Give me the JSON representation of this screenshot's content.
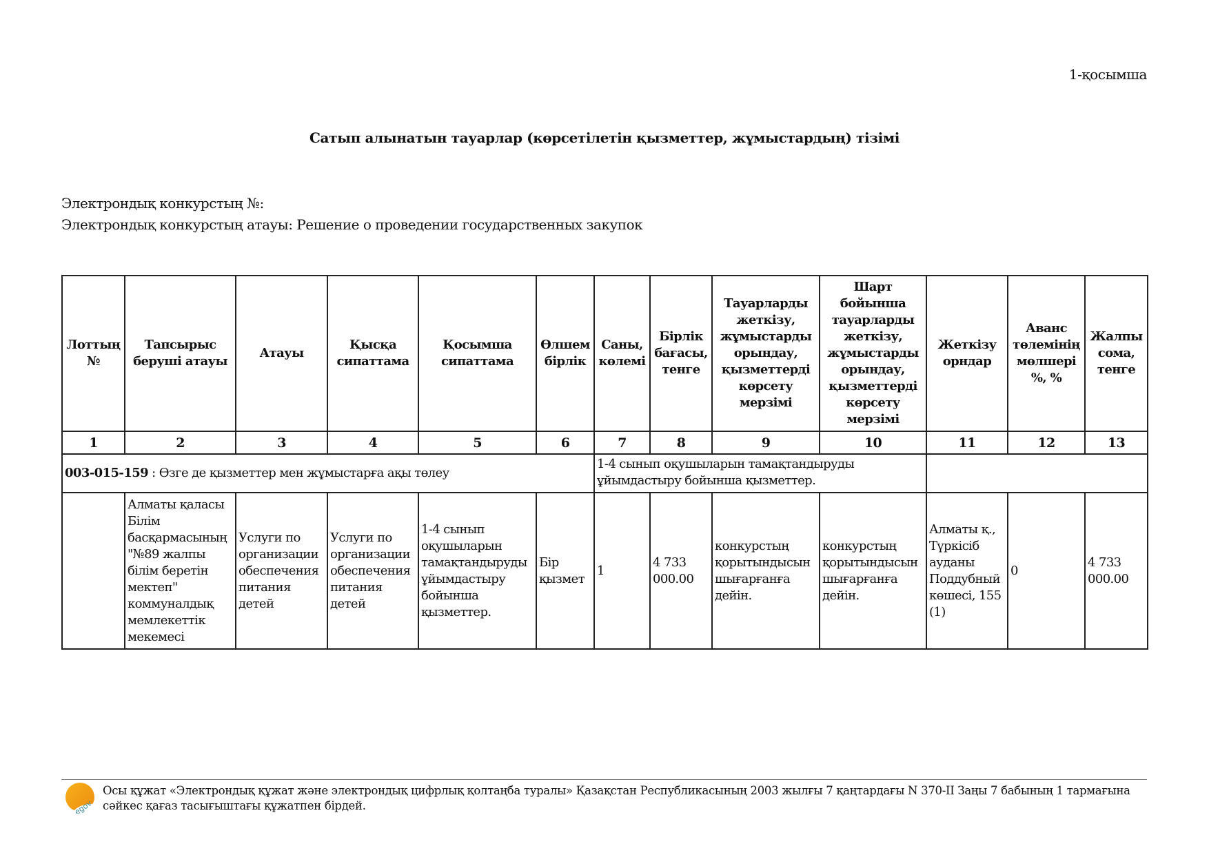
{
  "annex_label": "1-қосымша",
  "title": "Сатып алынатын тауарлар (көрсетілетін қызметтер, жұмыстардың) тізімі",
  "contest_number_label": "Электрондық конкурстың №:",
  "contest_name_label": "Электрондық конкурстың атауы: Решение о проведении государственных закупок",
  "table": {
    "headers": [
      "Лоттың №",
      "Тапсырыс беруші атауы",
      "Атауы",
      "Қысқа сипаттама",
      "Қосымша сипаттама",
      "Өлшем бірлік",
      "Саны, көлемі",
      "Бірлік бағасы, тенге",
      "Тауарларды жеткізу, жұмыстарды орындау, қызметтерді көрсету мерзімі",
      "Шарт бойынша тауарларды жеткізу, жұмыстарды орындау, қызметтерді көрсету мерзімі",
      "Жеткізу орндар",
      "Аванс төлемінің мөлшері %, %",
      "Жалпы сома, тенге"
    ],
    "column_numbers": [
      "1",
      "2",
      "3",
      "4",
      "5",
      "6",
      "7",
      "8",
      "9",
      "10",
      "11",
      "12",
      "13"
    ],
    "group": {
      "code": "003-015-159",
      "code_description": " : Өзге де қызметтер мен жұмыстарға ақы төлеу",
      "service_description": "1-4 сынып оқушыларын тамақтандыруды ұйымдастыру бойынша қызметтер."
    },
    "rows": [
      [
        "",
        "Алматы қаласы Білім басқармасының \"№89 жалпы білім беретін мектеп\" коммуналдық мемлекеттік мекемесі",
        "Услуги по организации обеспечения питания детей",
        "Услуги по организации обеспечения питания детей",
        "1-4 сынып оқушыларын тамақтандыруды ұйымдастыру бойынша қызметтер.",
        "Бір қызмет",
        "1",
        "4 733 000.00",
        "конкурстың қорытындысын шығарғанға дейін.",
        "конкурстың қорытындысын шығарғанға дейін.",
        "Алматы қ., Түркісіб ауданы Поддубный көшесі, 155 (1)",
        "0",
        "4 733 000.00"
      ]
    ]
  },
  "footer": {
    "logo_icon": "egov-sun-logo",
    "text": "Осы құжат «Электрондық құжат және электрондық цифрлық қолтаңба туралы» Қазақстан Республикасының 2003 жылғы 7 қаңтардағы N 370-II Заңы 7 бабының 1 тармағына сәйкес қағаз тасығыштағы құжатпен бірдей."
  }
}
